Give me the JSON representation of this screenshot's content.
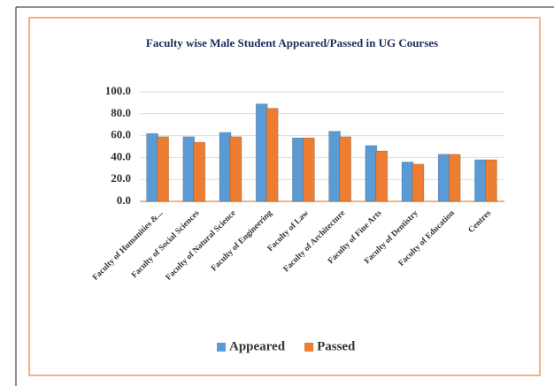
{
  "chart_data": {
    "type": "bar",
    "title": "Faculty wise Male Student Appeared/Passed in UG Courses",
    "categories": [
      "Faculty of Humanities &...",
      "Faculty of Social Sciences",
      "Faculty of Natural Science",
      "Faculty of Engineering",
      "Faculty of Law",
      "Faculty of Architecture",
      "Faculty of Fine Arts",
      "Faculty of Dentistry",
      "Faculty of Education",
      "Centres"
    ],
    "series": [
      {
        "name": "Appeared",
        "color": "#5b9bd5",
        "values": [
          62,
          59,
          63,
          89,
          58,
          64,
          51,
          36,
          43,
          38
        ]
      },
      {
        "name": "Passed",
        "color": "#ed7d31",
        "values": [
          59,
          54,
          59,
          85,
          58,
          59,
          46,
          34,
          43,
          38
        ]
      }
    ],
    "ylim": [
      0,
      100
    ],
    "yticks": [
      {
        "value": 0,
        "label": "0.0"
      },
      {
        "value": 20,
        "label": "20.0"
      },
      {
        "value": 40,
        "label": "40.0"
      },
      {
        "value": 60,
        "label": "60.0"
      },
      {
        "value": 80,
        "label": "80.0"
      },
      {
        "value": 100,
        "label": "100.0"
      }
    ],
    "grid": true,
    "legend": "bottom"
  }
}
